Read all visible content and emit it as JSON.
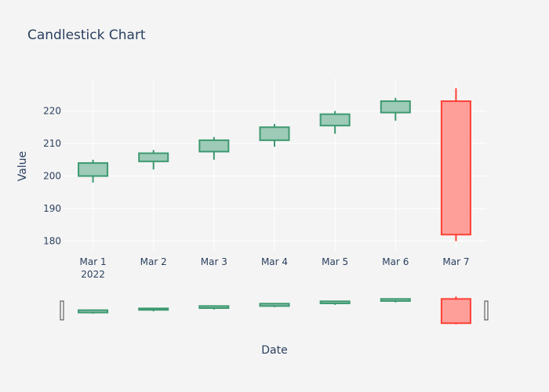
{
  "chart_data": {
    "type": "candlestick",
    "title": "Candlestick Chart",
    "xlabel": "Date",
    "ylabel": "Value",
    "x": [
      "Mar 1",
      "Mar 2",
      "Mar 3",
      "Mar 4",
      "Mar 5",
      "Mar 6",
      "Mar 7"
    ],
    "x_year_label": "2022",
    "open": [
      200,
      204.5,
      207.5,
      211,
      215.5,
      219.5,
      223
    ],
    "high": [
      205,
      208,
      212,
      216,
      220,
      224,
      227
    ],
    "low": [
      198,
      202,
      205,
      209,
      213,
      217,
      180
    ],
    "close": [
      204,
      207,
      211,
      215,
      219,
      223,
      182
    ],
    "ylim": [
      177,
      230
    ],
    "yticks": [
      180,
      190,
      200,
      210,
      220
    ],
    "grid": true,
    "rangeslider": true,
    "colors": {
      "increasing_line": "#3d9970",
      "increasing_fill": "#9dcbb8",
      "decreasing_line": "#ff4136",
      "decreasing_fill": "#ff9f9a",
      "grid": "#ffffff",
      "text": "#2a3f5f",
      "background": "#f4f4f4"
    }
  }
}
